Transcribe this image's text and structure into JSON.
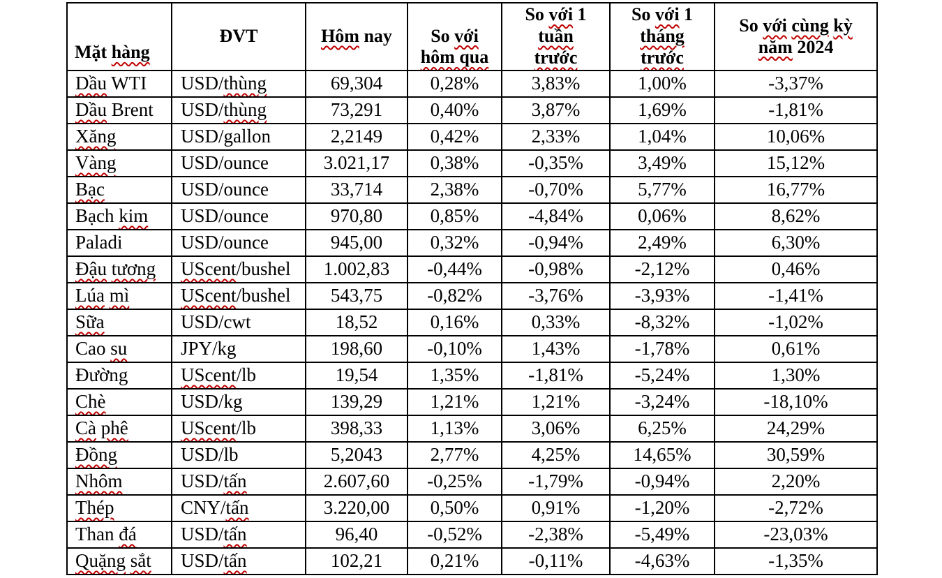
{
  "colors": {
    "background": "#ffffff",
    "text": "#000000",
    "border": "#000000",
    "squiggle_red": "#c00000"
  },
  "table": {
    "columns": [
      {
        "key": "name",
        "label": "Mặt hàng",
        "squiggles": [
          "hàng"
        ]
      },
      {
        "key": "unit",
        "label": "ĐVT",
        "squiggles": []
      },
      {
        "key": "today",
        "label": "Hôm nay",
        "squiggles": [
          "Hôm"
        ]
      },
      {
        "key": "vs_yesterday",
        "label": "So với\nhôm qua",
        "squiggles": [
          "với",
          "hôm qua"
        ]
      },
      {
        "key": "vs_week",
        "label": "So với 1\ntuần\ntrước",
        "squiggles": [
          "với",
          "tuần",
          "trước"
        ]
      },
      {
        "key": "vs_month",
        "label": "So với 1\ntháng\ntrước",
        "squiggles": [
          "với",
          "tháng",
          "trước"
        ]
      },
      {
        "key": "vs_year",
        "label": "So với cùng kỳ\nnăm 2024",
        "squiggles": [
          "với",
          "cùng",
          "kỳ",
          "năm"
        ]
      }
    ],
    "rows": [
      {
        "name": "Dầu WTI",
        "name_squiggles": [
          "Dầu"
        ],
        "unit": "USD/thùng",
        "unit_squiggles": [
          "thùng"
        ],
        "today": "69,304",
        "vs_yesterday": "0,28%",
        "vs_week": "3,83%",
        "vs_month": "1,00%",
        "vs_year": "-3,37%"
      },
      {
        "name": "Dầu Brent",
        "name_squiggles": [
          "Dầu"
        ],
        "unit": "USD/thùng",
        "unit_squiggles": [
          "thùng"
        ],
        "today": "73,291",
        "vs_yesterday": "0,40%",
        "vs_week": "3,87%",
        "vs_month": "1,69%",
        "vs_year": "-1,81%"
      },
      {
        "name": "Xăng",
        "name_squiggles": [
          "Xăng"
        ],
        "unit": "USD/gallon",
        "unit_squiggles": [],
        "today": "2,2149",
        "vs_yesterday": "0,42%",
        "vs_week": "2,33%",
        "vs_month": "1,04%",
        "vs_year": "10,06%"
      },
      {
        "name": "Vàng",
        "name_squiggles": [
          "Vàng"
        ],
        "unit": "USD/ounce",
        "unit_squiggles": [],
        "today": "3.021,17",
        "vs_yesterday": "0,38%",
        "vs_week": "-0,35%",
        "vs_month": "3,49%",
        "vs_year": "15,12%"
      },
      {
        "name": "Bạc",
        "name_squiggles": [
          "Bạc"
        ],
        "unit": "USD/ounce",
        "unit_squiggles": [],
        "today": "33,714",
        "vs_yesterday": "2,38%",
        "vs_week": "-0,70%",
        "vs_month": "5,77%",
        "vs_year": "16,77%"
      },
      {
        "name": "Bạch kim",
        "name_squiggles": [
          "kim"
        ],
        "unit": "USD/ounce",
        "unit_squiggles": [],
        "today": "970,80",
        "vs_yesterday": "0,85%",
        "vs_week": "-4,84%",
        "vs_month": "0,06%",
        "vs_year": "8,62%"
      },
      {
        "name": "Paladi",
        "name_squiggles": [],
        "unit": "USD/ounce",
        "unit_squiggles": [],
        "today": "945,00",
        "vs_yesterday": "0,32%",
        "vs_week": "-0,94%",
        "vs_month": "2,49%",
        "vs_year": "6,30%"
      },
      {
        "name": "Đậu tương",
        "name_squiggles": [
          "Đậu",
          "tương"
        ],
        "unit": "UScent/bushel",
        "unit_squiggles": [
          "UScent"
        ],
        "today": "1.002,83",
        "vs_yesterday": "-0,44%",
        "vs_week": "-0,98%",
        "vs_month": "-2,12%",
        "vs_year": "0,46%"
      },
      {
        "name": "Lúa mì",
        "name_squiggles": [
          "Lúa",
          "mì"
        ],
        "unit": "UScent/bushel",
        "unit_squiggles": [
          "UScent"
        ],
        "today": "543,75",
        "vs_yesterday": "-0,82%",
        "vs_week": "-3,76%",
        "vs_month": "-3,93%",
        "vs_year": "-1,41%"
      },
      {
        "name": "Sữa",
        "name_squiggles": [
          "Sữa"
        ],
        "unit": "USD/cwt",
        "unit_squiggles": [],
        "today": "18,52",
        "vs_yesterday": "0,16%",
        "vs_week": "0,33%",
        "vs_month": "-8,32%",
        "vs_year": "-1,02%"
      },
      {
        "name": "Cao su",
        "name_squiggles": [
          "su"
        ],
        "unit": "JPY/kg",
        "unit_squiggles": [],
        "today": "198,60",
        "vs_yesterday": "-0,10%",
        "vs_week": "1,43%",
        "vs_month": "-1,78%",
        "vs_year": "0,61%"
      },
      {
        "name": "Đường",
        "name_squiggles": [],
        "unit": "UScent/lb",
        "unit_squiggles": [
          "UScent"
        ],
        "today": "19,54",
        "vs_yesterday": "1,35%",
        "vs_week": "-1,81%",
        "vs_month": "-5,24%",
        "vs_year": "1,30%"
      },
      {
        "name": "Chè",
        "name_squiggles": [
          "Chè"
        ],
        "unit": "USD/kg",
        "unit_squiggles": [],
        "today": "139,29",
        "vs_yesterday": "1,21%",
        "vs_week": "1,21%",
        "vs_month": "-3,24%",
        "vs_year": "-18,10%"
      },
      {
        "name": "Cà phê",
        "name_squiggles": [
          "Cà",
          "phê"
        ],
        "unit": "UScent/lb",
        "unit_squiggles": [
          "UScent"
        ],
        "today": "398,33",
        "vs_yesterday": "1,13%",
        "vs_week": "3,06%",
        "vs_month": "6,25%",
        "vs_year": "24,29%"
      },
      {
        "name": "Đồng",
        "name_squiggles": [
          "Đồng"
        ],
        "unit": "USD/lb",
        "unit_squiggles": [],
        "today": "5,2043",
        "vs_yesterday": "2,77%",
        "vs_week": "4,25%",
        "vs_month": "14,65%",
        "vs_year": "30,59%"
      },
      {
        "name": "Nhôm",
        "name_squiggles": [
          "Nhôm"
        ],
        "unit": "USD/tấn",
        "unit_squiggles": [
          "tấn"
        ],
        "today": "2.607,60",
        "vs_yesterday": "-0,25%",
        "vs_week": "-1,79%",
        "vs_month": "-0,94%",
        "vs_year": "2,20%"
      },
      {
        "name": "Thép",
        "name_squiggles": [
          "Thép"
        ],
        "unit": "CNY/tấn",
        "unit_squiggles": [
          "tấn"
        ],
        "today": "3.220,00",
        "vs_yesterday": "0,50%",
        "vs_week": "0,91%",
        "vs_month": "-1,20%",
        "vs_year": "-2,72%"
      },
      {
        "name": "Than đá",
        "name_squiggles": [
          "đá"
        ],
        "unit": "USD/tấn",
        "unit_squiggles": [
          "tấn"
        ],
        "today": "96,40",
        "vs_yesterday": "-0,52%",
        "vs_week": "-2,38%",
        "vs_month": "-5,49%",
        "vs_year": "-23,03%"
      },
      {
        "name": "Quặng sắt",
        "name_squiggles": [
          "Quặng",
          "sắt"
        ],
        "unit": "USD/tấn",
        "unit_squiggles": [
          "tấn"
        ],
        "today": "102,21",
        "vs_yesterday": "0,21%",
        "vs_week": "-0,11%",
        "vs_month": "-4,63%",
        "vs_year": "-1,35%"
      }
    ]
  }
}
